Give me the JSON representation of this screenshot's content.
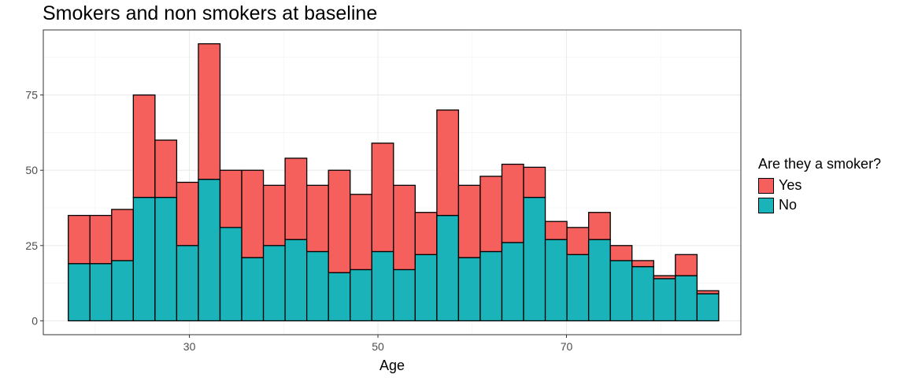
{
  "chart_data": {
    "type": "bar",
    "stacked": true,
    "title": "Smokers and non smokers at baseline",
    "xlabel": "Age",
    "ylabel": "",
    "xlim": [
      14.5,
      88.5
    ],
    "ylim": [
      -4.6,
      96.6
    ],
    "xticks": [
      30,
      50,
      70
    ],
    "yticks": [
      0,
      25,
      50,
      75
    ],
    "grid": true,
    "legend_position": "right",
    "legend_title": "Are they a smoker?",
    "bin_width": 2.3,
    "x": [
      18.3,
      20.6,
      22.9,
      25.2,
      27.5,
      29.8,
      32.1,
      34.4,
      36.7,
      39.0,
      41.3,
      43.6,
      45.9,
      48.2,
      50.5,
      52.8,
      55.1,
      57.4,
      59.7,
      62.0,
      64.3,
      66.6,
      68.9,
      71.2,
      73.5,
      75.8,
      78.1,
      80.4,
      82.7,
      85.0
    ],
    "series": [
      {
        "name": "No",
        "color": "#19b3b9",
        "values": [
          19,
          19,
          20,
          41,
          41,
          25,
          47,
          31,
          21,
          25,
          27,
          23,
          16,
          17,
          23,
          17,
          22,
          35,
          21,
          23,
          26,
          41,
          27,
          22,
          27,
          20,
          18,
          14,
          15,
          9
        ]
      },
      {
        "name": "Yes",
        "color": "#f5605c",
        "values": [
          16,
          16,
          17,
          34,
          19,
          21,
          45,
          19,
          29,
          20,
          27,
          22,
          34,
          25,
          36,
          28,
          14,
          35,
          24,
          25,
          26,
          10,
          6,
          9,
          9,
          5,
          2,
          1,
          7,
          1
        ]
      }
    ],
    "legend_order": [
      "Yes",
      "No"
    ]
  }
}
